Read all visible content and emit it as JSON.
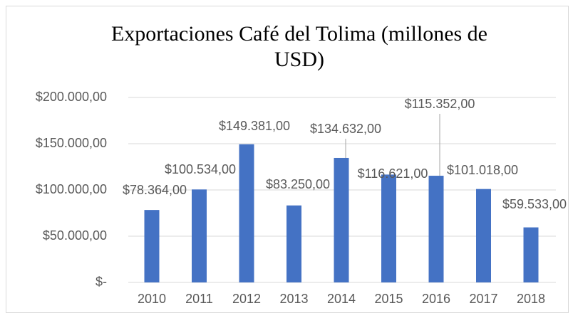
{
  "chart_data": {
    "type": "bar",
    "title": "Exportaciones Café del Tolima (millones de USD)",
    "categories": [
      "2010",
      "2011",
      "2012",
      "2013",
      "2014",
      "2015",
      "2016",
      "2017",
      "2018"
    ],
    "values": [
      78364,
      100534,
      149381,
      83250,
      134632,
      116621,
      115352,
      101018,
      59533
    ],
    "value_labels": [
      "$78.364,00",
      "$100.534,00",
      "$149.381,00",
      "$83.250,00",
      "$134.632,00",
      "$116.621,00",
      "$115.352,00",
      "$101.018,00",
      "$59.533,00"
    ],
    "color": "#4472c4",
    "ylim": [
      0,
      200000
    ],
    "yticks": [
      {
        "value": 0,
        "label": "$-"
      },
      {
        "value": 50000,
        "label": "$50.000,00"
      },
      {
        "value": 100000,
        "label": "$100.000,00"
      },
      {
        "value": 150000,
        "label": "$150.000,00"
      },
      {
        "value": 200000,
        "label": "$200.000,00"
      }
    ],
    "grid": true
  }
}
